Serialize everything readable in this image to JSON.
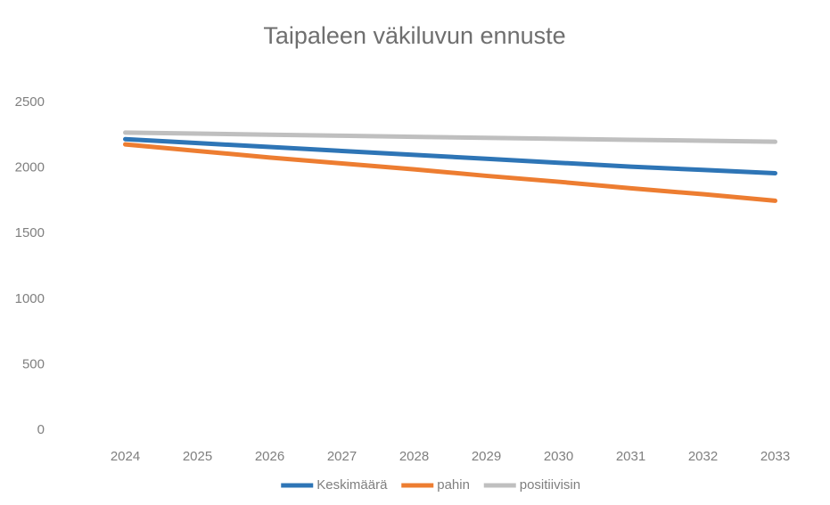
{
  "chart_data": {
    "type": "line",
    "title": "Taipaleen väkiluvun ennuste",
    "categories": [
      "2024",
      "2025",
      "2026",
      "2027",
      "2028",
      "2029",
      "2030",
      "2031",
      "2032",
      "2033"
    ],
    "series": [
      {
        "name": "Keskimäärä",
        "color": "#2e75b6",
        "values": [
          2220,
          2190,
          2160,
          2130,
          2100,
          2070,
          2040,
          2010,
          1985,
          1960
        ]
      },
      {
        "name": "pahin",
        "color": "#ed7d31",
        "values": [
          2180,
          2130,
          2080,
          2035,
          1990,
          1940,
          1895,
          1845,
          1800,
          1750
        ]
      },
      {
        "name": "positiivisin",
        "color": "#bfbfbf",
        "values": [
          2270,
          2262,
          2254,
          2246,
          2238,
          2230,
          2222,
          2215,
          2208,
          2200
        ]
      }
    ],
    "ylim": [
      0,
      2500
    ],
    "yticks": [
      0,
      500,
      1000,
      1500,
      2000,
      2500
    ],
    "grid": false,
    "legend": "bottom"
  }
}
